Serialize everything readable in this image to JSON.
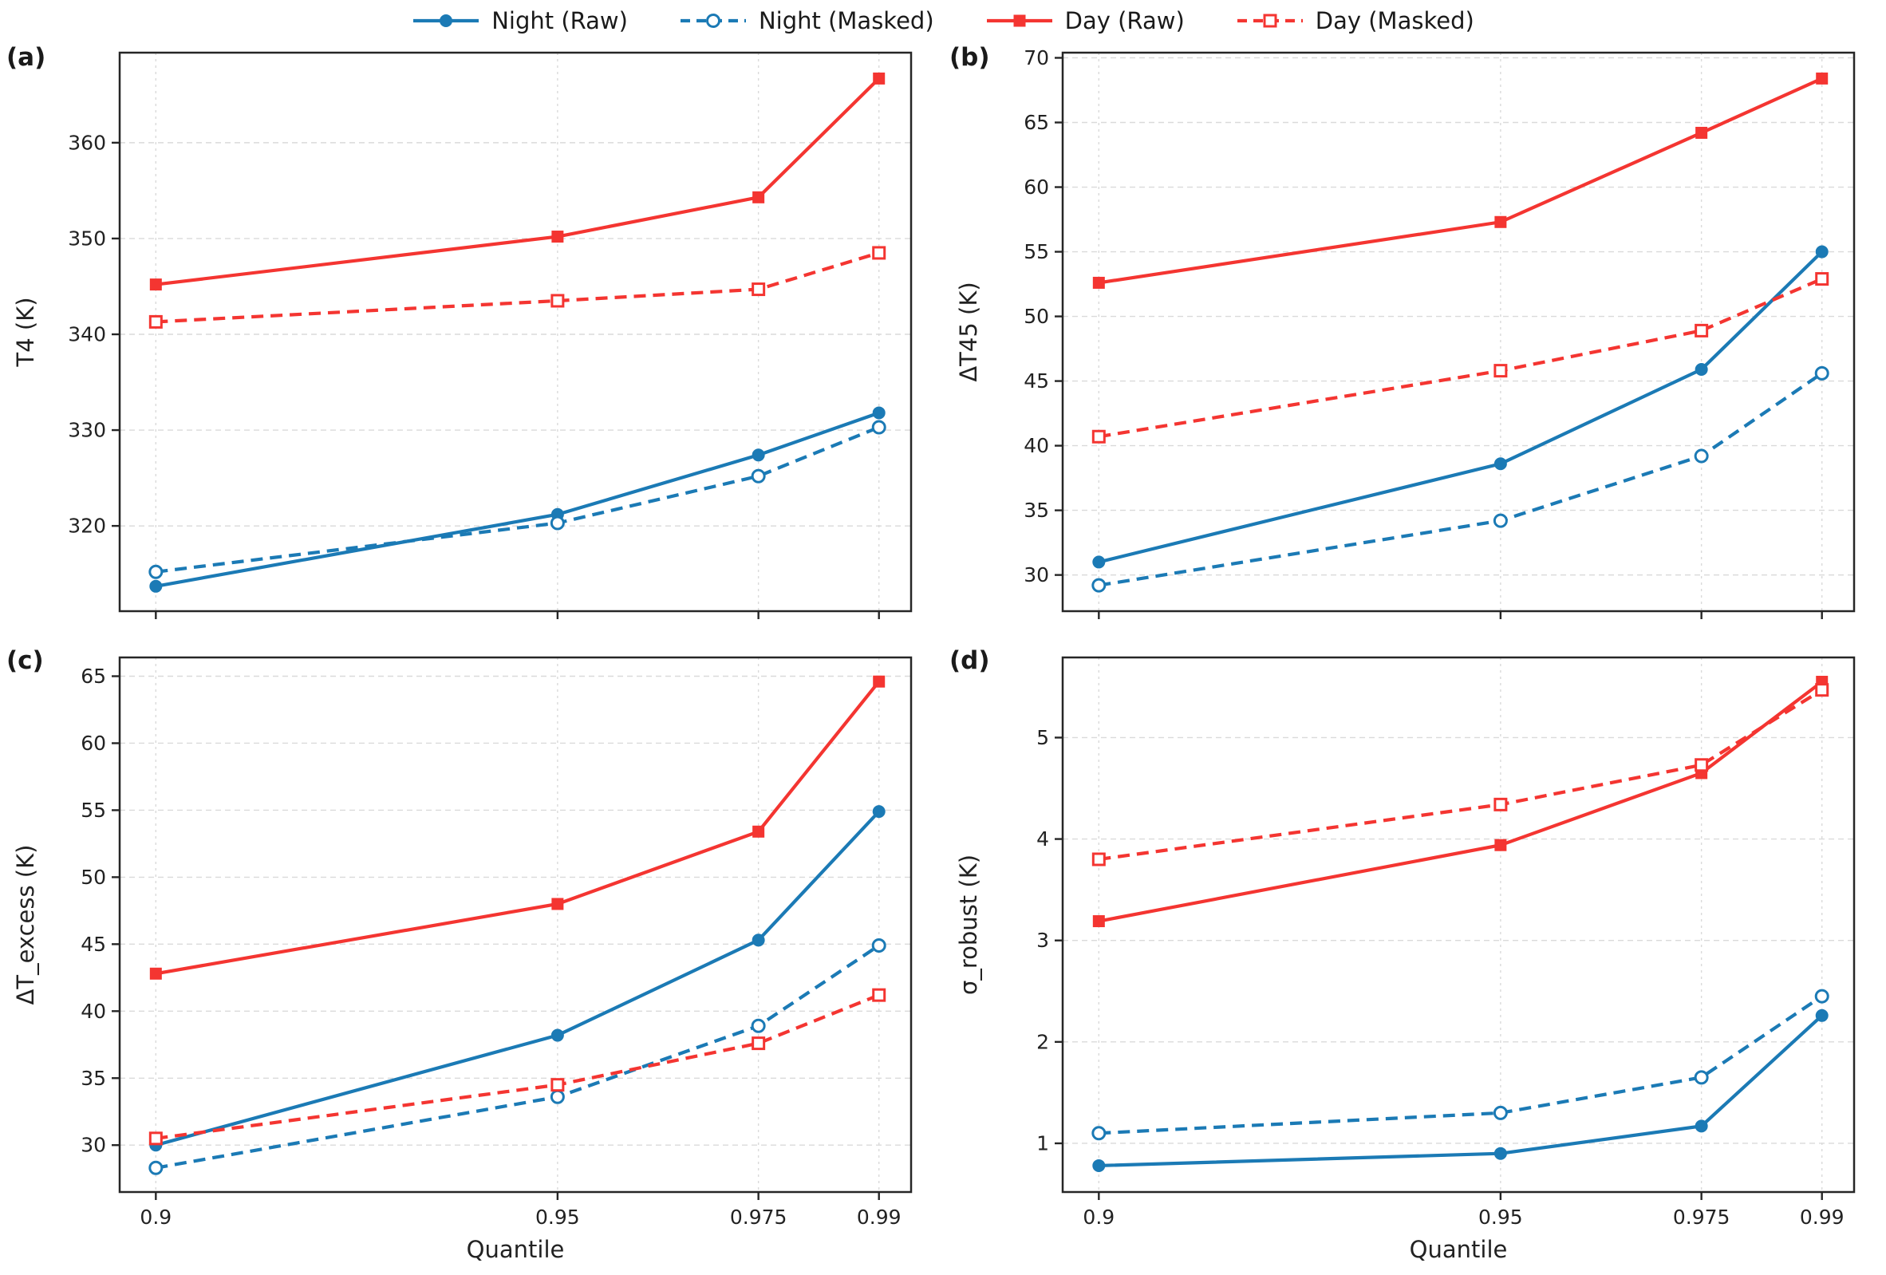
{
  "styles": {
    "blue": "#1b7ab5",
    "red": "#f43531",
    "grid_color": "#dadada",
    "spine_color": "#262626",
    "text_color": "#1a1a1a"
  },
  "legend": {
    "items": [
      {
        "label": "Night (Raw)",
        "color": "blue",
        "line": "solid",
        "marker": "circle-filled"
      },
      {
        "label": "Night (Masked)",
        "color": "blue",
        "line": "dashed",
        "marker": "circle-open"
      },
      {
        "label": "Day (Raw)",
        "color": "red",
        "line": "solid",
        "marker": "square-filled"
      },
      {
        "label": "Day (Masked)",
        "color": "red",
        "line": "dashed",
        "marker": "square-open"
      }
    ]
  },
  "chart_data": [
    {
      "type": "line",
      "letter": "(a)",
      "title": "",
      "xlabel": "",
      "ylabel": "T4 (K)",
      "x": [
        0.9,
        0.95,
        0.975,
        0.99
      ],
      "xticks": [
        0.9,
        0.95,
        0.975,
        0.99
      ],
      "xtick_labels": [
        "0.9",
        "0.95",
        "0.975",
        "0.99"
      ],
      "show_xtick_labels": false,
      "xlim": [
        0.8955,
        0.994
      ],
      "ylim": [
        311.1,
        369.4
      ],
      "yticks": [
        320,
        330,
        340,
        350,
        360
      ],
      "grid": true,
      "series": [
        {
          "name": "Night (Raw)",
          "color": "blue",
          "line": "solid",
          "marker": "circle-filled",
          "values": [
            313.7,
            321.2,
            327.4,
            331.8
          ]
        },
        {
          "name": "Night (Masked)",
          "color": "blue",
          "line": "dashed",
          "marker": "circle-open",
          "values": [
            315.2,
            320.3,
            325.2,
            330.3
          ]
        },
        {
          "name": "Day (Raw)",
          "color": "red",
          "line": "solid",
          "marker": "square-filled",
          "values": [
            345.2,
            350.2,
            354.3,
            366.7
          ]
        },
        {
          "name": "Day (Masked)",
          "color": "red",
          "line": "dashed",
          "marker": "square-open",
          "values": [
            341.3,
            343.5,
            344.7,
            348.5
          ]
        }
      ]
    },
    {
      "type": "line",
      "letter": "(b)",
      "title": "",
      "xlabel": "",
      "ylabel": "ΔT45 (K)",
      "x": [
        0.9,
        0.95,
        0.975,
        0.99
      ],
      "xticks": [
        0.9,
        0.95,
        0.975,
        0.99
      ],
      "xtick_labels": [
        "0.9",
        "0.95",
        "0.975",
        "0.99"
      ],
      "show_xtick_labels": false,
      "xlim": [
        0.8955,
        0.994
      ],
      "ylim": [
        27.2,
        70.4
      ],
      "yticks": [
        30,
        35,
        40,
        45,
        50,
        55,
        60,
        65,
        70
      ],
      "grid": true,
      "series": [
        {
          "name": "Night (Raw)",
          "color": "blue",
          "line": "solid",
          "marker": "circle-filled",
          "values": [
            31.0,
            38.6,
            45.9,
            55.0
          ]
        },
        {
          "name": "Night (Masked)",
          "color": "blue",
          "line": "dashed",
          "marker": "circle-open",
          "values": [
            29.2,
            34.2,
            39.2,
            45.6
          ]
        },
        {
          "name": "Day (Raw)",
          "color": "red",
          "line": "solid",
          "marker": "square-filled",
          "values": [
            52.6,
            57.3,
            64.2,
            68.4
          ]
        },
        {
          "name": "Day (Masked)",
          "color": "red",
          "line": "dashed",
          "marker": "square-open",
          "values": [
            40.7,
            45.8,
            48.9,
            52.9
          ]
        }
      ]
    },
    {
      "type": "line",
      "letter": "(c)",
      "title": "",
      "xlabel": "Quantile",
      "ylabel": "ΔT_excess (K)",
      "x": [
        0.9,
        0.95,
        0.975,
        0.99
      ],
      "xticks": [
        0.9,
        0.95,
        0.975,
        0.99
      ],
      "xtick_labels": [
        "0.9",
        "0.95",
        "0.975",
        "0.99"
      ],
      "show_xtick_labels": true,
      "xlim": [
        0.8955,
        0.994
      ],
      "ylim": [
        26.5,
        66.4
      ],
      "yticks": [
        30,
        35,
        40,
        45,
        50,
        55,
        60,
        65
      ],
      "grid": true,
      "series": [
        {
          "name": "Night (Raw)",
          "color": "blue",
          "line": "solid",
          "marker": "circle-filled",
          "values": [
            30.0,
            38.2,
            45.3,
            54.9
          ]
        },
        {
          "name": "Night (Masked)",
          "color": "blue",
          "line": "dashed",
          "marker": "circle-open",
          "values": [
            28.3,
            33.6,
            38.9,
            44.9
          ]
        },
        {
          "name": "Day (Raw)",
          "color": "red",
          "line": "solid",
          "marker": "square-filled",
          "values": [
            42.8,
            48.0,
            53.4,
            64.6
          ]
        },
        {
          "name": "Day (Masked)",
          "color": "red",
          "line": "dashed",
          "marker": "square-open",
          "values": [
            30.5,
            34.5,
            37.6,
            41.2
          ]
        }
      ]
    },
    {
      "type": "line",
      "letter": "(d)",
      "title": "",
      "xlabel": "Quantile",
      "ylabel": "σ_robust (K)",
      "x": [
        0.9,
        0.95,
        0.975,
        0.99
      ],
      "xticks": [
        0.9,
        0.95,
        0.975,
        0.99
      ],
      "xtick_labels": [
        "0.9",
        "0.95",
        "0.975",
        "0.99"
      ],
      "show_xtick_labels": true,
      "xlim": [
        0.8955,
        0.994
      ],
      "ylim": [
        0.52,
        5.79
      ],
      "yticks": [
        1,
        2,
        3,
        4,
        5
      ],
      "grid": true,
      "series": [
        {
          "name": "Night (Raw)",
          "color": "blue",
          "line": "solid",
          "marker": "circle-filled",
          "values": [
            0.78,
            0.9,
            1.17,
            2.26
          ]
        },
        {
          "name": "Night (Masked)",
          "color": "blue",
          "line": "dashed",
          "marker": "circle-open",
          "values": [
            1.1,
            1.3,
            1.65,
            2.45
          ]
        },
        {
          "name": "Day (Raw)",
          "color": "red",
          "line": "solid",
          "marker": "square-filled",
          "values": [
            3.19,
            3.94,
            4.65,
            5.55
          ]
        },
        {
          "name": "Day (Masked)",
          "color": "red",
          "line": "dashed",
          "marker": "square-open",
          "values": [
            3.8,
            4.34,
            4.73,
            5.47
          ]
        }
      ]
    }
  ]
}
